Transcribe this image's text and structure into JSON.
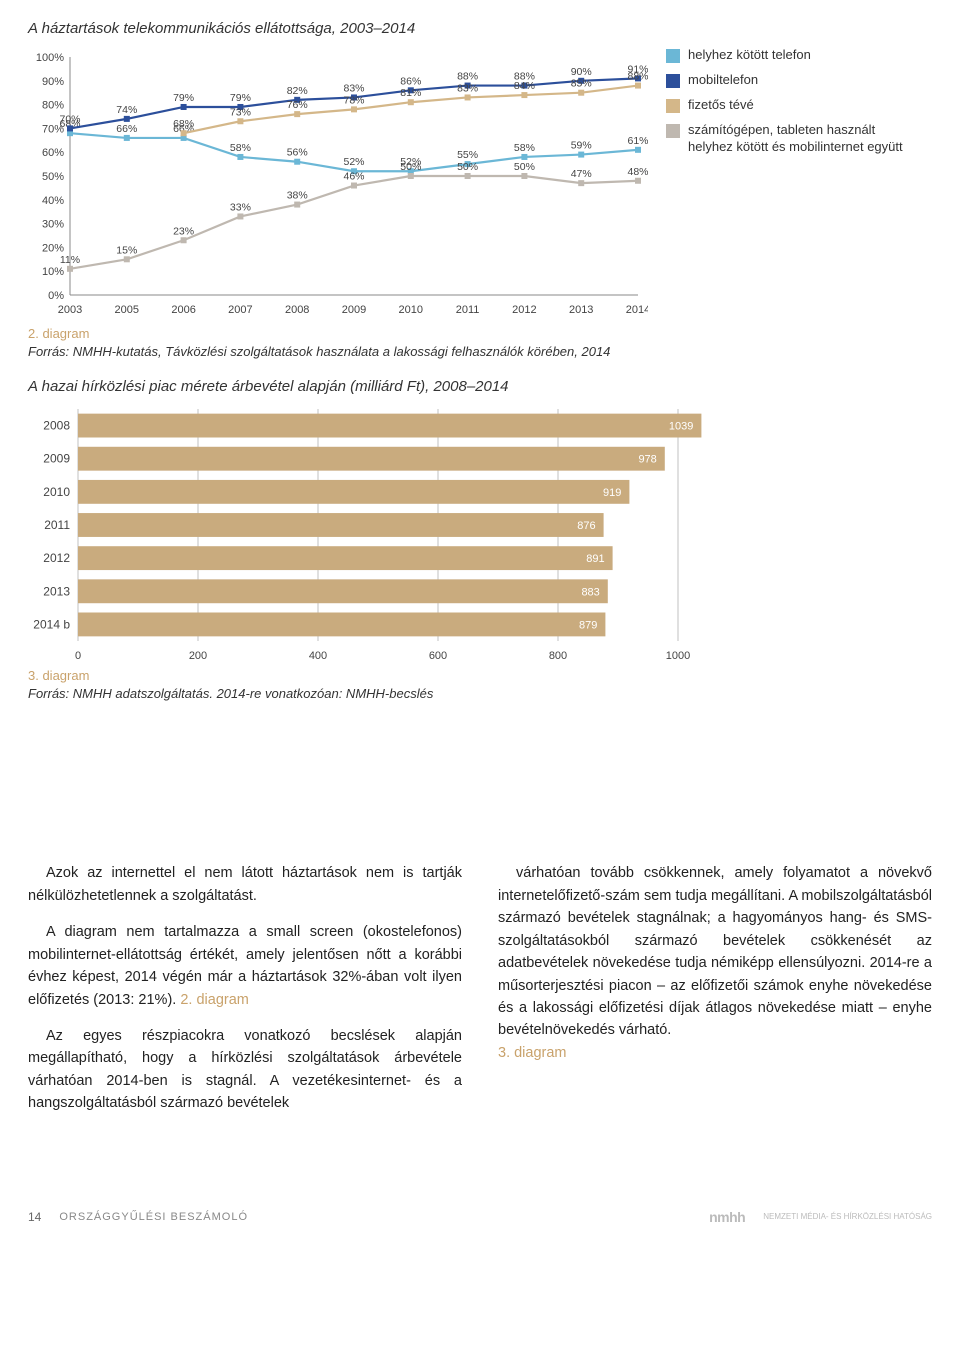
{
  "line_chart": {
    "title": "A háztartások telekommunikációs ellátottsága, 2003–2014",
    "caption_num": "2. diagram",
    "caption_text": "Forrás: NMHH-kutatás, Távközlési szolgáltatások használata a lakossági felhasználók körében, 2014",
    "ylim": [
      0,
      100
    ],
    "ytick_step": 10,
    "years": [
      "2003",
      "2005",
      "2006",
      "2007",
      "2008",
      "2009",
      "2010",
      "2011",
      "2012",
      "2013",
      "2014"
    ],
    "series": [
      {
        "name": "helyhez kötött telefon",
        "color": "#6bb7d6",
        "values": [
          68,
          66,
          66,
          58,
          56,
          52,
          52,
          55,
          58,
          59,
          61
        ],
        "labels": [
          "68%",
          "66%",
          "66%",
          "58%",
          "56%",
          "52%",
          "52%",
          "55%",
          "58%",
          "59%",
          "61%"
        ]
      },
      {
        "name": "mobiltelefon",
        "color": "#2c4f9b",
        "values": [
          70,
          74,
          79,
          79,
          82,
          83,
          86,
          88,
          88,
          90,
          91
        ],
        "labels": [
          "70%",
          "74%",
          "79%",
          "79%",
          "82%",
          "83%",
          "86%",
          "88%",
          "88%",
          "90%",
          "91%"
        ]
      },
      {
        "name": "fizetős tévé",
        "color": "#d4b789",
        "values": [
          null,
          null,
          68,
          73,
          76,
          78,
          81,
          83,
          84,
          85,
          88
        ],
        "labels": [
          "",
          "",
          "68%",
          "73%",
          "76%",
          "78%",
          "81%",
          "83%",
          "84%",
          "85%",
          "88%"
        ]
      },
      {
        "name": "számítógépen, tableten használt helyhez kötött és mobilinternet együtt",
        "color": "#bfb8b0",
        "values": [
          11,
          15,
          23,
          33,
          38,
          46,
          50,
          50,
          50,
          47,
          48
        ],
        "labels": [
          "11%",
          "15%",
          "23%",
          "33%",
          "38%",
          "46%",
          "50%",
          "50%",
          "50%",
          "47%",
          "48%"
        ]
      }
    ],
    "legend_colors": [
      "#6bb7d6",
      "#2c4f9b",
      "#d4b789",
      "#bfb8b0"
    ],
    "legend_labels": [
      "helyhez kötött telefon",
      "mobiltelefon",
      "fizetős tévé",
      "számítógépen, tableten használt helyhez kötött és mobilinternet együtt"
    ]
  },
  "bar_chart": {
    "title": "A hazai hírközlési piac mérete árbevétel alapján (milliárd Ft), 2008–2014",
    "caption_num": "3. diagram",
    "caption_text": "Forrás: NMHH adatszolgáltatás. 2014-re vonatkozóan: NMHH-becslés",
    "xlim": [
      0,
      1100
    ],
    "xticks": [
      0,
      200,
      400,
      600,
      800,
      1000
    ],
    "bar_color": "#c9ab7e",
    "grid_color": "#999999",
    "rows": [
      {
        "label": "2008",
        "value": 1039
      },
      {
        "label": "2009",
        "value": 978
      },
      {
        "label": "2010",
        "value": 919
      },
      {
        "label": "2011",
        "value": 876
      },
      {
        "label": "2012",
        "value": 891
      },
      {
        "label": "2013",
        "value": 883
      },
      {
        "label": "2014 b",
        "value": 879
      }
    ]
  },
  "body": {
    "col1_p1": "Azok az internettel el nem látott háztartások nem is tartják nélkülözhetetlennek a szolgáltatást.",
    "col1_p2": "A diagram nem tartalmazza a small screen (okostelefonos) mobilinternet-ellátottság értékét, amely jelentősen nőtt a korábbi évhez képest, 2014 végén már a háztartások 32%-ában volt ilyen előfizetés (2013: 21%).",
    "col1_ref1": "2. diagram",
    "col1_p3": "Az egyes részpiacokra vonatkozó becslések alapján megállapítható, hogy a hírközlési szolgáltatások árbevétele várhatóan 2014-ben is stagnál. A vezetékesinternet- és a hangszolgáltatásból származó bevételek",
    "col2_p1": "várhatóan tovább csökkennek, amely folyamatot a növekvő internetelőfizető-szám sem tudja megállítani. A mobilszolgáltatásból származó bevételek stagnálnak; a hagyományos hang- és SMS-szolgáltatásokból származó bevételek csökkenését az adatbevételek növekedése tudja némiképp ellensúlyozni. 2014-re a műsorterjesztési piacon – az előfizetői számok enyhe növekedése és a lakossági előfizetési díjak átlagos növekedése miatt – enyhe bevételnövekedés várható.",
    "col2_ref1": "3. diagram"
  },
  "footer": {
    "page_num": "14",
    "title": "ORSZÁGGYŰLÉSI BESZÁMOLÓ",
    "agency": "NEMZETI MÉDIA- ÉS HÍRKÖZLÉSI HATÓSÁG"
  }
}
